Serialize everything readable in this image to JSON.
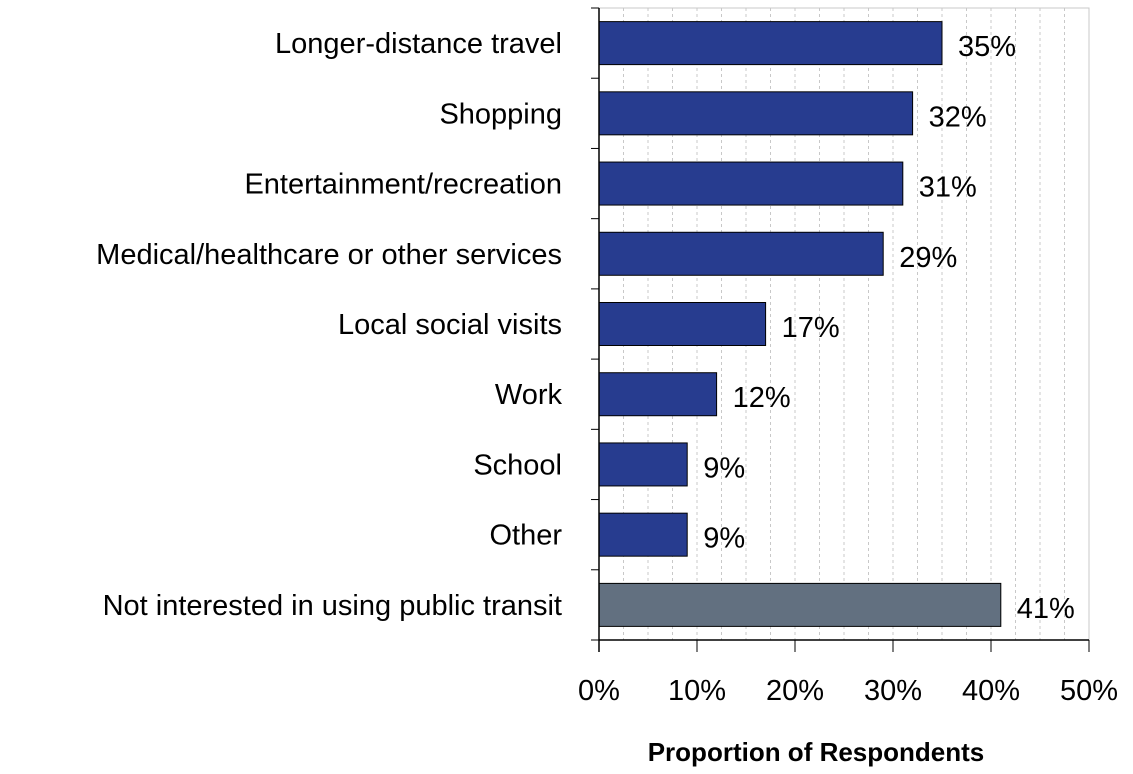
{
  "chart_data": {
    "type": "bar",
    "orientation": "horizontal",
    "categories": [
      "Longer-distance travel",
      "Shopping",
      "Entertainment/recreation",
      "Medical/healthcare or other services",
      "Local social visits",
      "Work",
      "School",
      "Other",
      "Not interested in using public transit"
    ],
    "values": [
      35,
      32,
      31,
      29,
      17,
      12,
      9,
      9,
      41
    ],
    "value_labels": [
      "35%",
      "32%",
      "31%",
      "29%",
      "17%",
      "12%",
      "9%",
      "9%",
      "41%"
    ],
    "bar_colors": [
      "#273c8f",
      "#273c8f",
      "#273c8f",
      "#273c8f",
      "#273c8f",
      "#273c8f",
      "#273c8f",
      "#273c8f",
      "#627080"
    ],
    "xlim": [
      0,
      50
    ],
    "x_ticks": [
      0,
      10,
      20,
      30,
      40,
      50
    ],
    "x_tick_labels": [
      "0%",
      "10%",
      "20%",
      "30%",
      "40%",
      "50%"
    ],
    "xlabel": "Proportion of Respondents",
    "ylabel": "",
    "title": "",
    "grid": "vertical dashed every 2.5%",
    "legend": "none"
  }
}
